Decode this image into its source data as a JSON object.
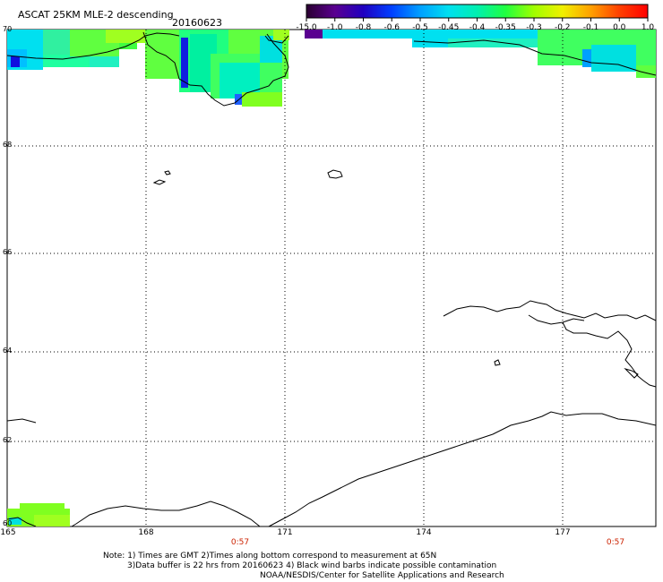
{
  "header": {
    "title": "ASCAT 25KM MLE-2 descending",
    "date": "20160623"
  },
  "colorbar": {
    "labels": [
      "-15.0",
      "-1.0",
      "-0.8",
      "-0.6",
      "-0.5",
      "-0.45",
      "-0.4",
      "-0.35",
      "-0.3",
      "-0.2",
      "-0.1",
      "0.0",
      "1.0"
    ],
    "colors": [
      "#2a0030",
      "#5a0090",
      "#2000c0",
      "#0040ff",
      "#00a0ff",
      "#00e0f0",
      "#00f0b0",
      "#20ff40",
      "#a0ff00",
      "#f0f000",
      "#ffa000",
      "#ff4000",
      "#ff0000"
    ]
  },
  "map": {
    "lat_labels": [
      "70",
      "68",
      "66",
      "64",
      "62",
      "60"
    ],
    "lon_labels": [
      "165",
      "168",
      "171",
      "174",
      "177"
    ],
    "time_labels": [
      "0:57",
      "0:57"
    ],
    "land_color": "#ffffff",
    "coast_color": "#000000"
  },
  "notes": {
    "line1": "Note: 1) Times are GMT 2)Times along bottom correspond to measurement at 65N",
    "line2": "3)Data buffer is 22 hrs from 20160623 4) Black wind barbs indicate possible contamination",
    "line3": "NOAA/NESDIS/Center for Satellite Applications and Research"
  }
}
